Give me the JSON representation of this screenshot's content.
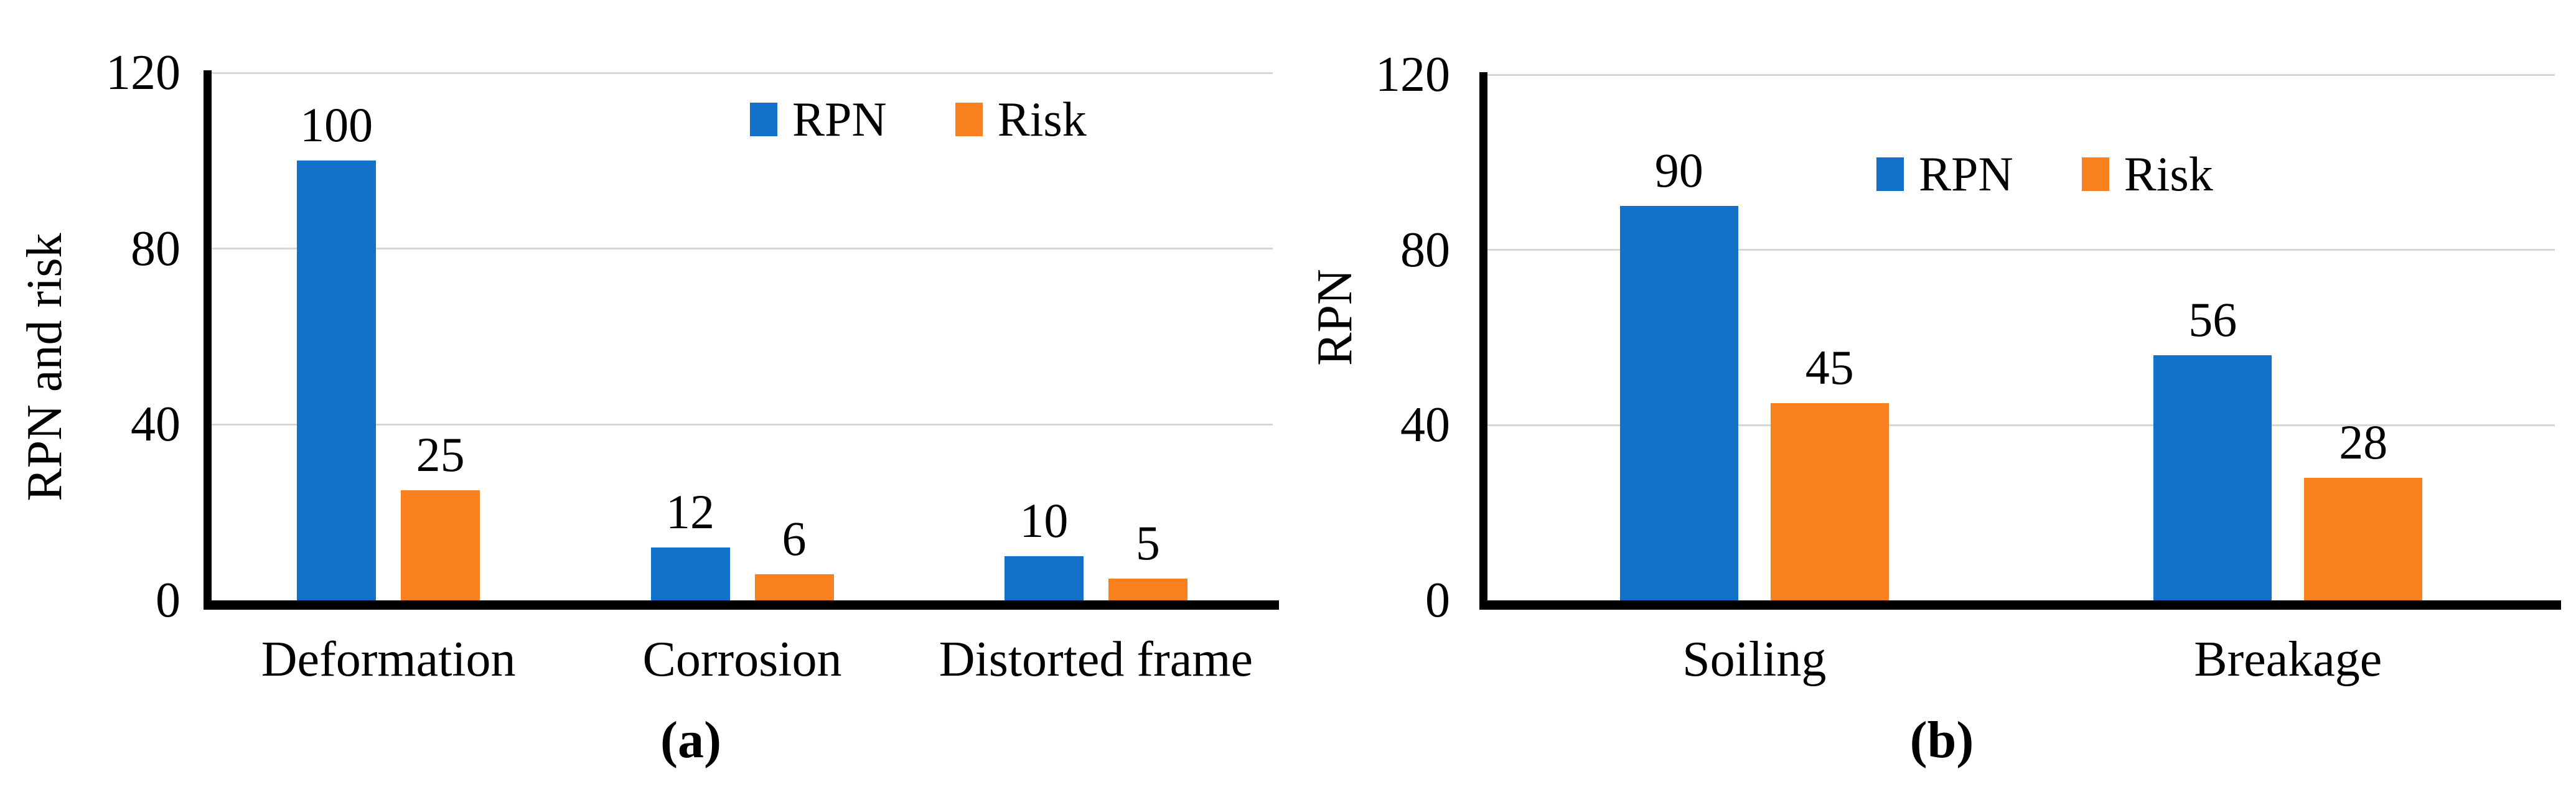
{
  "figure": {
    "description": "Two side-by-side bar charts comparing RPN and Risk values"
  },
  "chart_data": [
    {
      "type": "bar",
      "panel": "(a)",
      "ylabel": "RPN and risk",
      "xlabel": "",
      "categories": [
        "Deformation",
        "Corrosion",
        "Distorted frame"
      ],
      "series": [
        {
          "name": "RPN",
          "color": "#1471C9",
          "values": [
            100,
            12,
            10
          ]
        },
        {
          "name": "Risk",
          "color": "#F8801F",
          "values": [
            25,
            6,
            5
          ]
        }
      ],
      "ylim": [
        0,
        120
      ],
      "yticks": [
        0,
        40,
        80,
        120
      ],
      "grid": true,
      "gridline_color": "#D7D7D7",
      "data_labels": true,
      "legend_position": "top-inside"
    },
    {
      "type": "bar",
      "panel": "(b)",
      "ylabel": "RPN",
      "xlabel": "",
      "categories": [
        "Soiling",
        "Breakage"
      ],
      "series": [
        {
          "name": "RPN",
          "color": "#1471C9",
          "values": [
            90,
            56
          ]
        },
        {
          "name": "Risk",
          "color": "#F8801F",
          "values": [
            45,
            28
          ]
        }
      ],
      "ylim": [
        0,
        120
      ],
      "yticks": [
        0,
        40,
        80,
        120
      ],
      "grid": true,
      "gridline_color": "#D7D7D7",
      "data_labels": true,
      "legend_position": "top-inside"
    }
  ]
}
